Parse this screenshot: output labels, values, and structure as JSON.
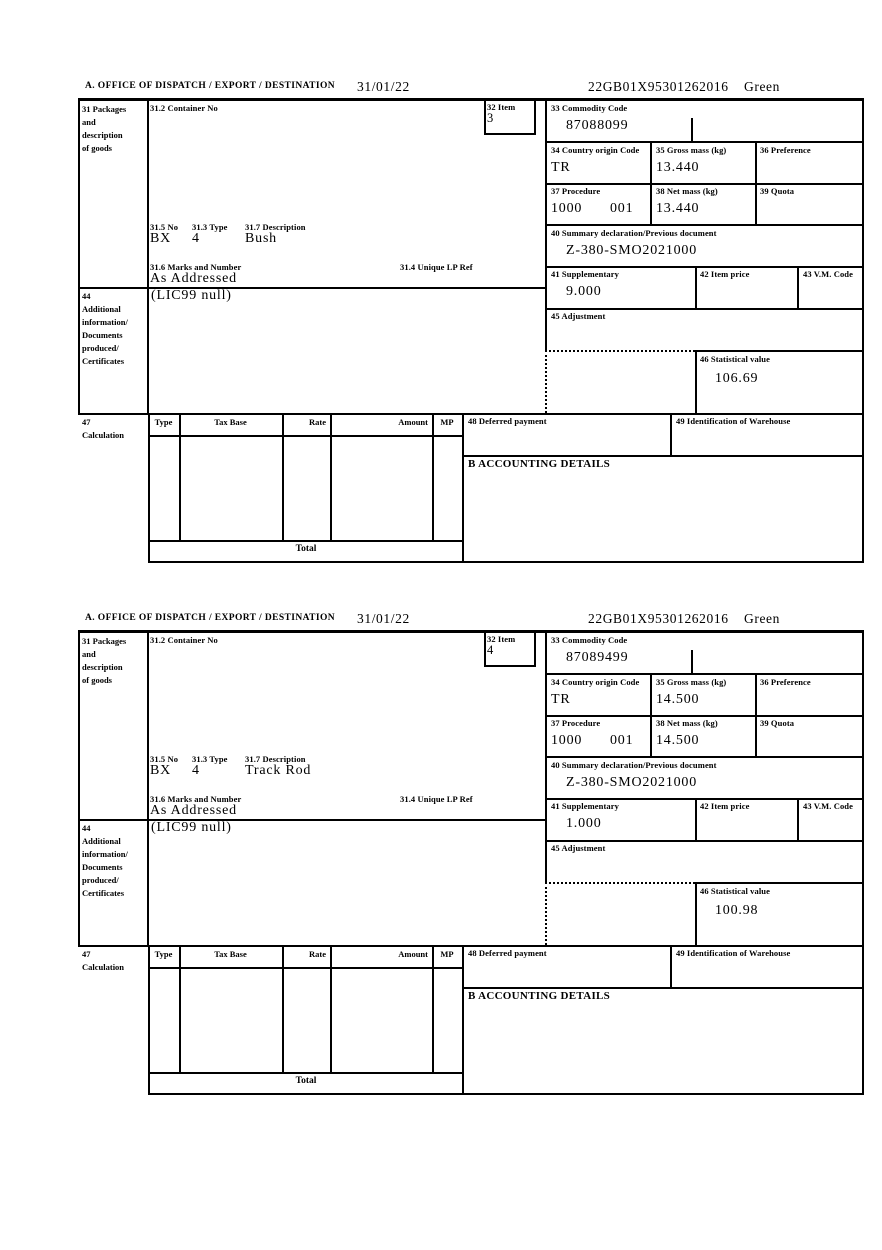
{
  "header": {
    "office_label": "A.  OFFICE OF DISPATCH / EXPORT / DESTINATION",
    "date": "31/01/22",
    "reference": "22GB01X95301262016",
    "route": "Green"
  },
  "labels": {
    "box31_lines": [
      "31 Packages",
      "and",
      "description",
      "of goods"
    ],
    "box31_2": "31.2 Container No",
    "box32": "32 Item",
    "box33": "33 Commodity Code",
    "box34": "34 Country origin Code",
    "box35": "35 Gross mass (kg)",
    "box36": "36 Preference",
    "box37": "37 Procedure",
    "box38": "38 Net mass (kg)",
    "box39": "39 Quota",
    "box40": "40 Summary declaration/Previous document",
    "box41": "41 Supplementary",
    "box42": "42 Item price",
    "box43": "43 V.M. Code",
    "box44_lines": [
      "44",
      "Additional",
      "information/",
      "Documents",
      "produced/",
      "Certificates"
    ],
    "box45": "45 Adjustment",
    "box46": "46 Statistical value",
    "box47_lines": [
      "47",
      "Calculation"
    ],
    "box48": "48 Deferred payment",
    "box49": "49 Identification of Warehouse",
    "box31_5": "31.5 No",
    "box31_3": "31.3 Type",
    "box31_7": "31.7 Description",
    "box31_6": "31.6 Marks and Number",
    "box31_4": "31.4 Unique LP Ref",
    "accounting": "B ACCOUNTING DETAILS",
    "calc_headers": {
      "type": "Type",
      "tax_base": "Tax Base",
      "rate": "Rate",
      "amount": "Amount",
      "mp": "MP"
    },
    "total": "Total"
  },
  "items": [
    {
      "item_no": "3",
      "commodity_code": "87088099",
      "country_origin_code": "TR",
      "gross_mass_kg": "13.440",
      "procedure": "1000",
      "procedure_suffix": "001",
      "net_mass_kg": "13.440",
      "summary_declaration": "Z-380-SMO2021000",
      "supplementary": "9.000",
      "statistical_value": "106.69",
      "package_no": "BX",
      "package_type": "4",
      "goods_description": "Bush",
      "marks_and_number": "As Addressed",
      "additional_information": "(LIC99 null)"
    },
    {
      "item_no": "4",
      "commodity_code": "87089499",
      "country_origin_code": "TR",
      "gross_mass_kg": "14.500",
      "procedure": "1000",
      "procedure_suffix": "001",
      "net_mass_kg": "14.500",
      "summary_declaration": "Z-380-SMO2021000",
      "supplementary": "1.000",
      "statistical_value": "100.98",
      "package_no": "BX",
      "package_type": "4",
      "goods_description": "Track Rod",
      "marks_and_number": "As Addressed",
      "additional_information": "(LIC99 null)"
    }
  ]
}
